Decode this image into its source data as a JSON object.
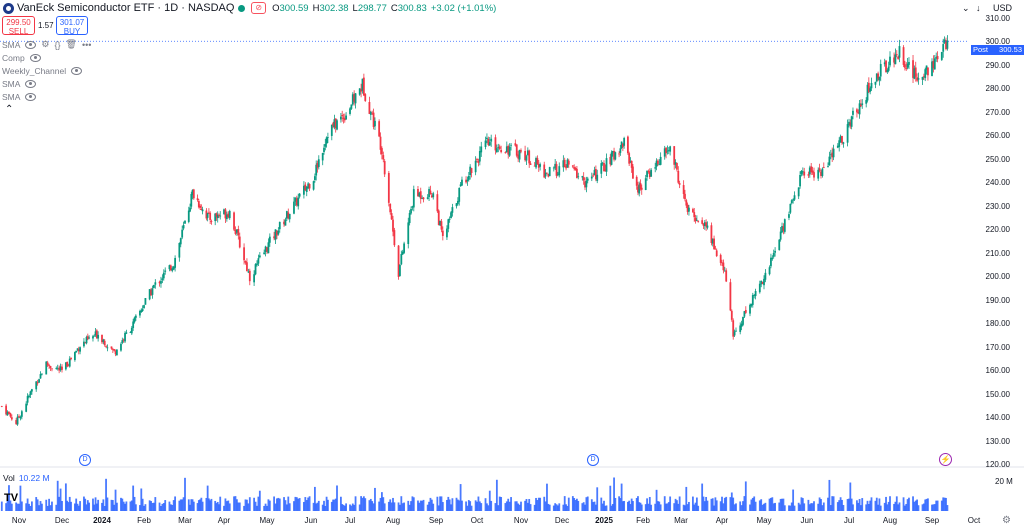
{
  "header": {
    "title": "VanEck Semiconductor ETF · 1D · NASDAQ",
    "open_label": "O",
    "open": "300.59",
    "high_label": "H",
    "high": "302.38",
    "low_label": "L",
    "low": "298.77",
    "close_label": "C",
    "close": "300.83",
    "change": "+3.02 (+1.01%)",
    "currency": "USD",
    "collapse": "⌄",
    "arrow": "↓"
  },
  "trade": {
    "sell_price": "299.50",
    "sell_label": "SELL",
    "spread": "1.57",
    "buy_price": "301.07",
    "buy_label": "BUY"
  },
  "indicators": [
    {
      "name": "SMA"
    },
    {
      "name": "Comp"
    },
    {
      "name": "Weekly_Channel"
    },
    {
      "name": "SMA"
    },
    {
      "name": "SMA"
    }
  ],
  "price_axis": {
    "labels": [
      "310.00",
      "300.00",
      "290.00",
      "280.00",
      "270.00",
      "260.00",
      "250.00",
      "240.00",
      "230.00",
      "220.00",
      "210.00",
      "200.00",
      "190.00",
      "180.00",
      "170.00",
      "160.00",
      "150.00",
      "140.00",
      "130.00",
      "120.00"
    ]
  },
  "post_badge": {
    "label": "Post",
    "value": "300.53"
  },
  "volume": {
    "label": "Vol",
    "value": "10.22 M",
    "axis_label": "20 M"
  },
  "time_axis": [
    "Nov",
    "Dec",
    "2024",
    "Feb",
    "Mar",
    "Apr",
    "May",
    "Jun",
    "Jul",
    "Aug",
    "Sep",
    "Oct",
    "Nov",
    "Dec",
    "2025",
    "Feb",
    "Mar",
    "Apr",
    "May",
    "Jun",
    "Jul",
    "Aug",
    "Sep",
    "Oct"
  ],
  "colors": {
    "up": "#089981",
    "down": "#f23645",
    "volume": "#2962ff",
    "accent": "#2962ff"
  },
  "icons": [
    "tradingview-logo",
    "eye-icon",
    "settings-icon",
    "lightning-icon",
    "dividend-icon"
  ],
  "chart_data": {
    "type": "candlestick",
    "ylim": [
      120,
      310
    ],
    "x_range": [
      "2023-10",
      "2025-10"
    ],
    "last_price": 300.53,
    "path_points": [
      [
        "2023-10-20",
        145
      ],
      [
        "2023-10-30",
        138
      ],
      [
        "2023-11-10",
        152
      ],
      [
        "2023-11-20",
        163
      ],
      [
        "2023-12-01",
        160
      ],
      [
        "2023-12-15",
        171
      ],
      [
        "2023-12-29",
        176
      ],
      [
        "2024-01-10",
        168
      ],
      [
        "2024-01-24",
        180
      ],
      [
        "2024-02-08",
        196
      ],
      [
        "2024-02-22",
        206
      ],
      [
        "2024-03-07",
        236
      ],
      [
        "2024-03-20",
        225
      ],
      [
        "2024-04-05",
        228
      ],
      [
        "2024-04-19",
        200
      ],
      [
        "2024-05-03",
        215
      ],
      [
        "2024-05-17",
        228
      ],
      [
        "2024-06-03",
        243
      ],
      [
        "2024-06-14",
        262
      ],
      [
        "2024-06-28",
        270
      ],
      [
        "2024-07-10",
        282
      ],
      [
        "2024-07-24",
        255
      ],
      [
        "2024-08-05",
        202
      ],
      [
        "2024-08-16",
        235
      ],
      [
        "2024-08-30",
        236
      ],
      [
        "2024-09-06",
        216
      ],
      [
        "2024-09-20",
        240
      ],
      [
        "2024-10-08",
        257
      ],
      [
        "2024-10-22",
        255
      ],
      [
        "2024-11-05",
        252
      ],
      [
        "2024-11-20",
        244
      ],
      [
        "2024-12-05",
        248
      ],
      [
        "2024-12-19",
        240
      ],
      [
        "2025-01-06",
        250
      ],
      [
        "2025-01-17",
        258
      ],
      [
        "2025-01-28",
        237
      ],
      [
        "2025-02-10",
        248
      ],
      [
        "2025-02-21",
        255
      ],
      [
        "2025-03-06",
        228
      ],
      [
        "2025-03-20",
        222
      ],
      [
        "2025-04-04",
        200
      ],
      [
        "2025-04-09",
        175
      ],
      [
        "2025-04-22",
        190
      ],
      [
        "2025-05-05",
        205
      ],
      [
        "2025-05-15",
        222
      ],
      [
        "2025-05-29",
        245
      ],
      [
        "2025-06-12",
        245
      ],
      [
        "2025-06-27",
        260
      ],
      [
        "2025-07-10",
        275
      ],
      [
        "2025-07-25",
        288
      ],
      [
        "2025-08-08",
        296
      ],
      [
        "2025-08-20",
        285
      ],
      [
        "2025-09-05",
        292
      ],
      [
        "2025-09-12",
        300.8
      ]
    ]
  }
}
